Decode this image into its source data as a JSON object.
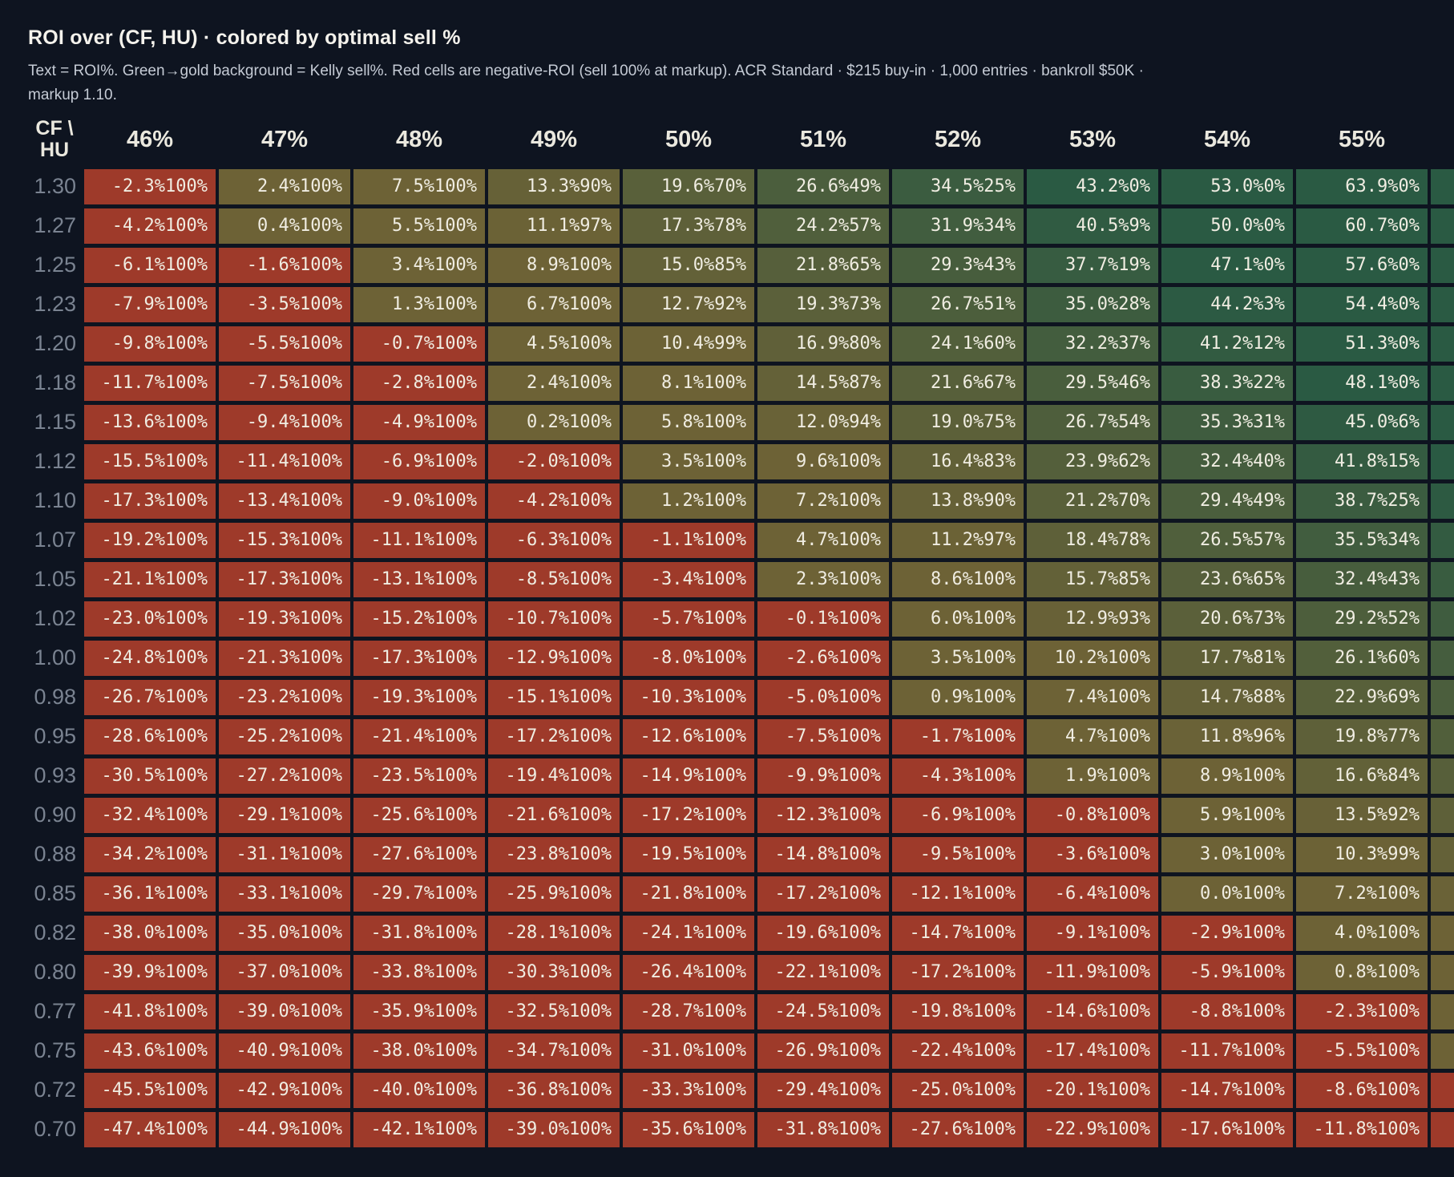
{
  "header": {
    "title": "ROI over (CF, HU) · colored by optimal sell %",
    "subtitle_line1": "Text = ROI%. Green→gold background = Kelly sell%. Red cells are negative-ROI (sell 100% at markup). ACR Standard · $215 buy-in · 1,000 entries · bankroll $50K ·",
    "subtitle_line2": "markup 1.10."
  },
  "table": {
    "corner": {
      "line1": "CF \\",
      "line2": "HU"
    }
  },
  "colors": {
    "background": "#0e1420",
    "title": "#f4f2ec",
    "subtitle": "#c5cbd5",
    "row_label": "#7a8391",
    "col_header": "#eae8de",
    "cell_text": "#f0ede2",
    "negative_cell": "#9e3a2a",
    "sell0_cell": "#2a5a43",
    "sell100_cell": "#6d6236"
  },
  "chart_data": {
    "type": "heatmap",
    "title": "ROI over (CF, HU) · colored by optimal sell %",
    "x_label": "HU",
    "y_label": "CF",
    "cell_text_format": "{roi}%{sell}%",
    "color_rule": "roi < 0 → red; else interpolate green (sell 0%) → gold (sell 100%)",
    "columns": [
      "46%",
      "47%",
      "48%",
      "49%",
      "50%",
      "51%",
      "52%",
      "53%",
      "54%",
      "55%"
    ],
    "rows": [
      "1.30",
      "1.27",
      "1.25",
      "1.23",
      "1.20",
      "1.18",
      "1.15",
      "1.12",
      "1.10",
      "1.07",
      "1.05",
      "1.02",
      "1.00",
      "0.98",
      "0.95",
      "0.93",
      "0.90",
      "0.88",
      "0.85",
      "0.82",
      "0.80",
      "0.77",
      "0.75",
      "0.72",
      "0.70"
    ],
    "roi": [
      [
        -2.3,
        2.4,
        7.5,
        13.3,
        19.6,
        26.6,
        34.5,
        43.2,
        53.0,
        63.9
      ],
      [
        -4.2,
        0.4,
        5.5,
        11.1,
        17.3,
        24.2,
        31.9,
        40.5,
        50.0,
        60.7
      ],
      [
        -6.1,
        -1.6,
        3.4,
        8.9,
        15.0,
        21.8,
        29.3,
        37.7,
        47.1,
        57.6
      ],
      [
        -7.9,
        -3.5,
        1.3,
        6.7,
        12.7,
        19.3,
        26.7,
        35.0,
        44.2,
        54.4
      ],
      [
        -9.8,
        -5.5,
        -0.7,
        4.5,
        10.4,
        16.9,
        24.1,
        32.2,
        41.2,
        51.3
      ],
      [
        -11.7,
        -7.5,
        -2.8,
        2.4,
        8.1,
        14.5,
        21.6,
        29.5,
        38.3,
        48.1
      ],
      [
        -13.6,
        -9.4,
        -4.9,
        0.2,
        5.8,
        12.0,
        19.0,
        26.7,
        35.3,
        45.0
      ],
      [
        -15.5,
        -11.4,
        -6.9,
        -2.0,
        3.5,
        9.6,
        16.4,
        23.9,
        32.4,
        41.8
      ],
      [
        -17.3,
        -13.4,
        -9.0,
        -4.2,
        1.2,
        7.2,
        13.8,
        21.2,
        29.4,
        38.7
      ],
      [
        -19.2,
        -15.3,
        -11.1,
        -6.3,
        -1.1,
        4.7,
        11.2,
        18.4,
        26.5,
        35.5
      ],
      [
        -21.1,
        -17.3,
        -13.1,
        -8.5,
        -3.4,
        2.3,
        8.6,
        15.7,
        23.6,
        32.4
      ],
      [
        -23.0,
        -19.3,
        -15.2,
        -10.7,
        -5.7,
        -0.1,
        6.0,
        12.9,
        20.6,
        29.2
      ],
      [
        -24.8,
        -21.3,
        -17.3,
        -12.9,
        -8.0,
        -2.6,
        3.5,
        10.2,
        17.7,
        26.1
      ],
      [
        -26.7,
        -23.2,
        -19.3,
        -15.1,
        -10.3,
        -5.0,
        0.9,
        7.4,
        14.7,
        22.9
      ],
      [
        -28.6,
        -25.2,
        -21.4,
        -17.2,
        -12.6,
        -7.5,
        -1.7,
        4.7,
        11.8,
        19.8
      ],
      [
        -30.5,
        -27.2,
        -23.5,
        -19.4,
        -14.9,
        -9.9,
        -4.3,
        1.9,
        8.9,
        16.6
      ],
      [
        -32.4,
        -29.1,
        -25.6,
        -21.6,
        -17.2,
        -12.3,
        -6.9,
        -0.8,
        5.9,
        13.5
      ],
      [
        -34.2,
        -31.1,
        -27.6,
        -23.8,
        -19.5,
        -14.8,
        -9.5,
        -3.6,
        3.0,
        10.3
      ],
      [
        -36.1,
        -33.1,
        -29.7,
        -25.9,
        -21.8,
        -17.2,
        -12.1,
        -6.4,
        0.0,
        7.2
      ],
      [
        -38.0,
        -35.0,
        -31.8,
        -28.1,
        -24.1,
        -19.6,
        -14.7,
        -9.1,
        -2.9,
        4.0
      ],
      [
        -39.9,
        -37.0,
        -33.8,
        -30.3,
        -26.4,
        -22.1,
        -17.2,
        -11.9,
        -5.9,
        0.8
      ],
      [
        -41.8,
        -39.0,
        -35.9,
        -32.5,
        -28.7,
        -24.5,
        -19.8,
        -14.6,
        -8.8,
        -2.3
      ],
      [
        -43.6,
        -40.9,
        -38.0,
        -34.7,
        -31.0,
        -26.9,
        -22.4,
        -17.4,
        -11.7,
        -5.5
      ],
      [
        -45.5,
        -42.9,
        -40.0,
        -36.8,
        -33.3,
        -29.4,
        -25.0,
        -20.1,
        -14.7,
        -8.6
      ],
      [
        -47.4,
        -44.9,
        -42.1,
        -39.0,
        -35.6,
        -31.8,
        -27.6,
        -22.9,
        -17.6,
        -11.8
      ]
    ],
    "sell": [
      [
        100,
        100,
        100,
        90,
        70,
        49,
        25,
        0,
        0,
        0
      ],
      [
        100,
        100,
        100,
        97,
        78,
        57,
        34,
        9,
        0,
        0
      ],
      [
        100,
        100,
        100,
        100,
        85,
        65,
        43,
        19,
        0,
        0
      ],
      [
        100,
        100,
        100,
        100,
        92,
        73,
        51,
        28,
        3,
        0
      ],
      [
        100,
        100,
        100,
        100,
        99,
        80,
        60,
        37,
        12,
        0
      ],
      [
        100,
        100,
        100,
        100,
        100,
        87,
        67,
        46,
        22,
        0
      ],
      [
        100,
        100,
        100,
        100,
        100,
        94,
        75,
        54,
        31,
        6
      ],
      [
        100,
        100,
        100,
        100,
        100,
        100,
        83,
        62,
        40,
        15
      ],
      [
        100,
        100,
        100,
        100,
        100,
        100,
        90,
        70,
        49,
        25
      ],
      [
        100,
        100,
        100,
        100,
        100,
        100,
        97,
        78,
        57,
        34
      ],
      [
        100,
        100,
        100,
        100,
        100,
        100,
        100,
        85,
        65,
        43
      ],
      [
        100,
        100,
        100,
        100,
        100,
        100,
        100,
        93,
        73,
        52
      ],
      [
        100,
        100,
        100,
        100,
        100,
        100,
        100,
        100,
        81,
        60
      ],
      [
        100,
        100,
        100,
        100,
        100,
        100,
        100,
        100,
        88,
        69
      ],
      [
        100,
        100,
        100,
        100,
        100,
        100,
        100,
        100,
        96,
        77
      ],
      [
        100,
        100,
        100,
        100,
        100,
        100,
        100,
        100,
        100,
        84
      ],
      [
        100,
        100,
        100,
        100,
        100,
        100,
        100,
        100,
        100,
        92
      ],
      [
        100,
        100,
        100,
        100,
        100,
        100,
        100,
        100,
        100,
        99
      ],
      [
        100,
        100,
        100,
        100,
        100,
        100,
        100,
        100,
        100,
        100
      ],
      [
        100,
        100,
        100,
        100,
        100,
        100,
        100,
        100,
        100,
        100
      ],
      [
        100,
        100,
        100,
        100,
        100,
        100,
        100,
        100,
        100,
        100
      ],
      [
        100,
        100,
        100,
        100,
        100,
        100,
        100,
        100,
        100,
        100
      ],
      [
        100,
        100,
        100,
        100,
        100,
        100,
        100,
        100,
        100,
        100
      ],
      [
        100,
        100,
        100,
        100,
        100,
        100,
        100,
        100,
        100,
        100
      ],
      [
        100,
        100,
        100,
        100,
        100,
        100,
        100,
        100,
        100,
        100
      ]
    ]
  },
  "edge_column": {
    "note": "11th data column clipped by right image edge; only cell background slivers visible, no text",
    "sell_estimates": [
      0,
      0,
      0,
      0,
      0,
      0,
      0,
      0,
      5,
      13,
      22,
      31,
      40,
      49,
      58,
      67,
      77,
      86,
      95,
      100,
      100,
      100,
      100,
      100,
      100
    ],
    "negative": [
      false,
      false,
      false,
      false,
      false,
      false,
      false,
      false,
      false,
      false,
      false,
      false,
      false,
      false,
      false,
      false,
      false,
      false,
      false,
      false,
      false,
      false,
      false,
      true,
      true
    ]
  }
}
